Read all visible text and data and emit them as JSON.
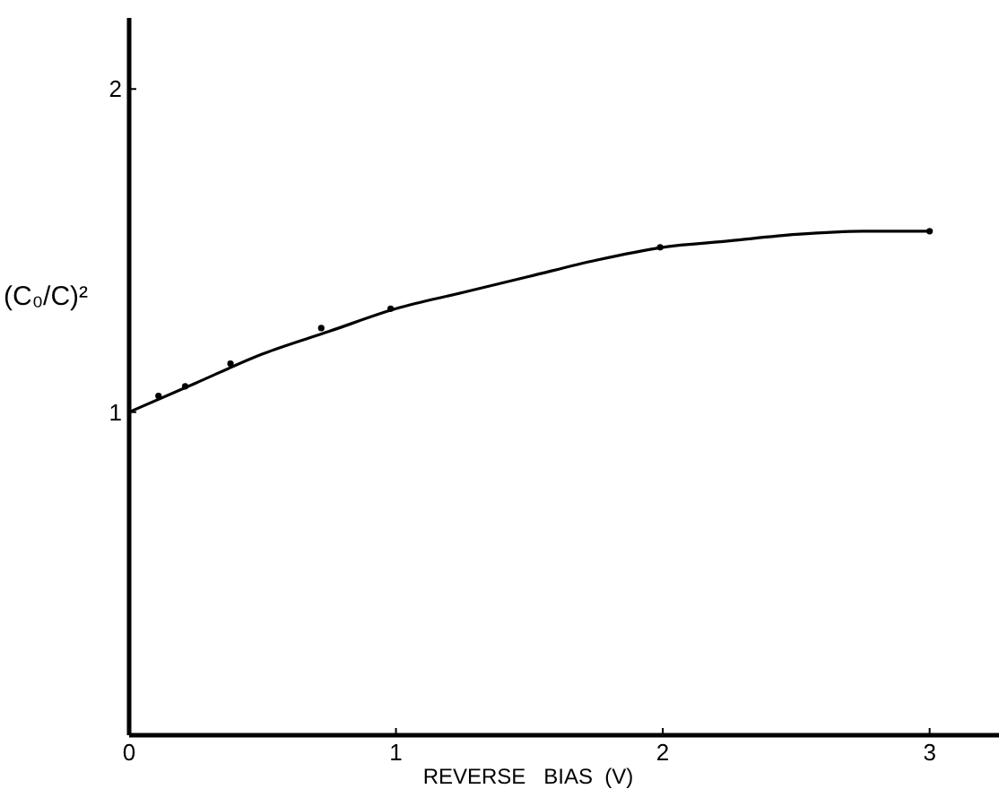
{
  "chart_data": {
    "type": "line",
    "xlabel": "REVERSE   BIAS  (V)",
    "ylabel": "(C₀/C)²",
    "xlim": [
      0,
      3.26
    ],
    "ylim": [
      0,
      2.22
    ],
    "xticks": [
      0,
      1,
      2,
      3
    ],
    "yticks": [
      1,
      2
    ],
    "grid": false,
    "series": [
      {
        "color": "#000000",
        "marker": "none",
        "line_style": "solid",
        "x": [
          0,
          0.25,
          0.5,
          0.75,
          1,
          1.25,
          1.5,
          1.75,
          2,
          2.25,
          2.5,
          2.75,
          3
        ],
        "values": [
          1.0,
          1.09,
          1.18,
          1.25,
          1.32,
          1.37,
          1.42,
          1.47,
          1.51,
          1.53,
          1.55,
          1.56,
          1.56
        ]
      },
      {
        "type": "scatter",
        "color": "#000000",
        "marker": "circle",
        "x": [
          0.11,
          0.21,
          0.38,
          0.72,
          0.98,
          1.99,
          3.0
        ],
        "values": [
          1.05,
          1.08,
          1.15,
          1.26,
          1.32,
          1.51,
          1.56
        ]
      }
    ]
  }
}
